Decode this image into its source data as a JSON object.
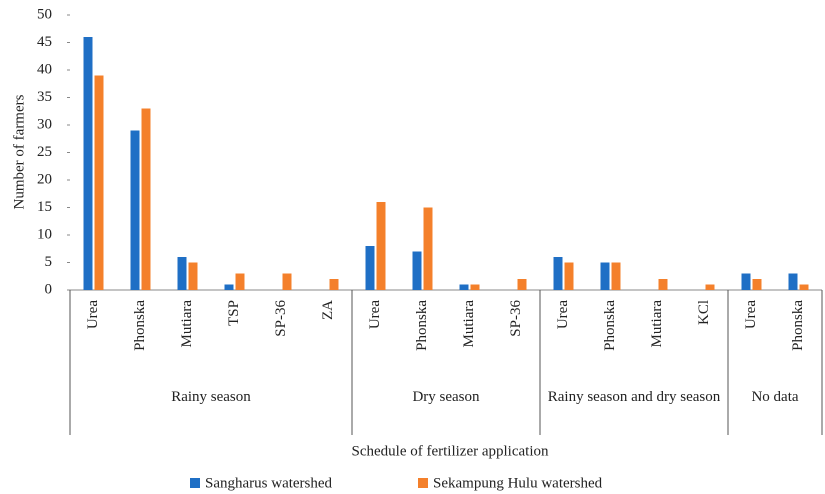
{
  "chart_data": {
    "type": "bar",
    "x_label": "Schedule of fertilizer application",
    "y_label": "Number of farmers",
    "groups": [
      {
        "label": "Rainy season",
        "categories": [
          "Urea",
          "Phonska",
          "Mutiara",
          "TSP",
          "SP-36",
          "ZA"
        ]
      },
      {
        "label": "Dry season",
        "categories": [
          "Urea",
          "Phonska",
          "Mutiara",
          "SP-36"
        ]
      },
      {
        "label": "Rainy season and dry season",
        "categories": [
          "Urea",
          "Phonska",
          "Mutiara",
          "KCl"
        ]
      },
      {
        "label": "No data",
        "categories": [
          "Urea",
          "Phonska"
        ]
      }
    ],
    "series": [
      {
        "name": "Sangharus watershed",
        "color": "#1f6fc5",
        "values": [
          46,
          29,
          6,
          1,
          0,
          0,
          8,
          7,
          1,
          0,
          6,
          5,
          0,
          0,
          3,
          3
        ]
      },
      {
        "name": "Sekampung Hulu watershed",
        "color": "#f4802b",
        "values": [
          39,
          33,
          5,
          3,
          3,
          2,
          16,
          15,
          1,
          2,
          5,
          5,
          2,
          1,
          2,
          1
        ]
      }
    ],
    "ylim": [
      0,
      50
    ],
    "yticks": [
      0,
      5,
      10,
      15,
      20,
      25,
      30,
      35,
      40,
      45,
      50
    ],
    "legend": "bottom"
  }
}
